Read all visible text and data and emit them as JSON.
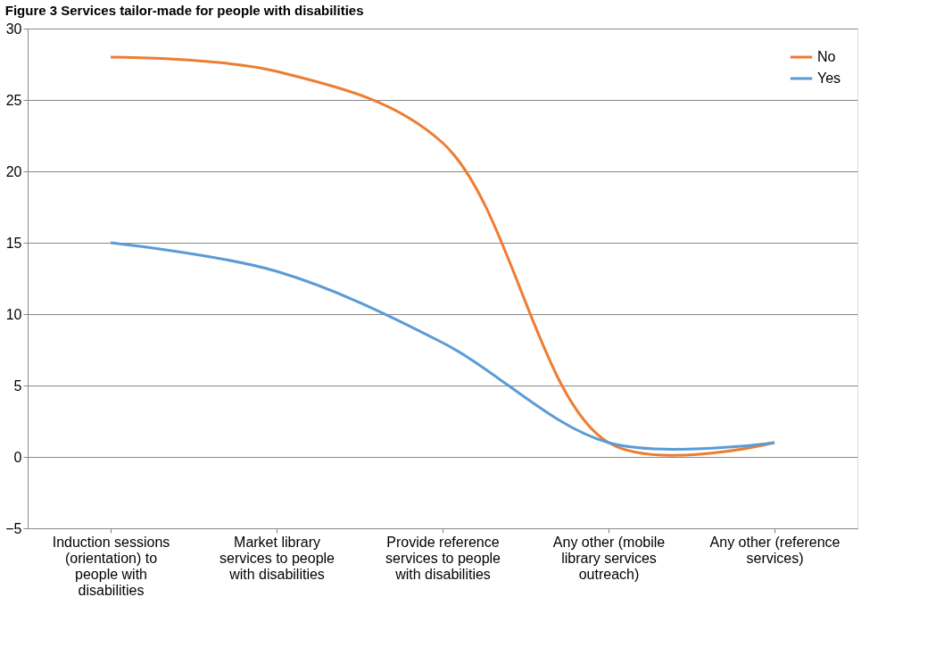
{
  "chart_data": {
    "type": "line",
    "title": "Figure 3 Services tailor-made for people with disabilities",
    "categories": [
      "Induction sessions (orientation) to people with disabilities",
      "Market library services to people with disabilities",
      "Provide reference services to people with disabilities",
      "Any other (mobile library services outreach)",
      "Any other (reference services)"
    ],
    "series": [
      {
        "name": "No",
        "color": "#ed7d31",
        "values": [
          28,
          27,
          22,
          1,
          1
        ]
      },
      {
        "name": "Yes",
        "color": "#5b9bd5",
        "values": [
          15,
          13,
          8,
          1,
          1
        ]
      }
    ],
    "ylim": [
      -5,
      30
    ],
    "yticks": [
      -5,
      0,
      5,
      10,
      15,
      20,
      25,
      30
    ],
    "grid": "y",
    "legend": "top right",
    "marker": "none",
    "line_style": "solid"
  }
}
